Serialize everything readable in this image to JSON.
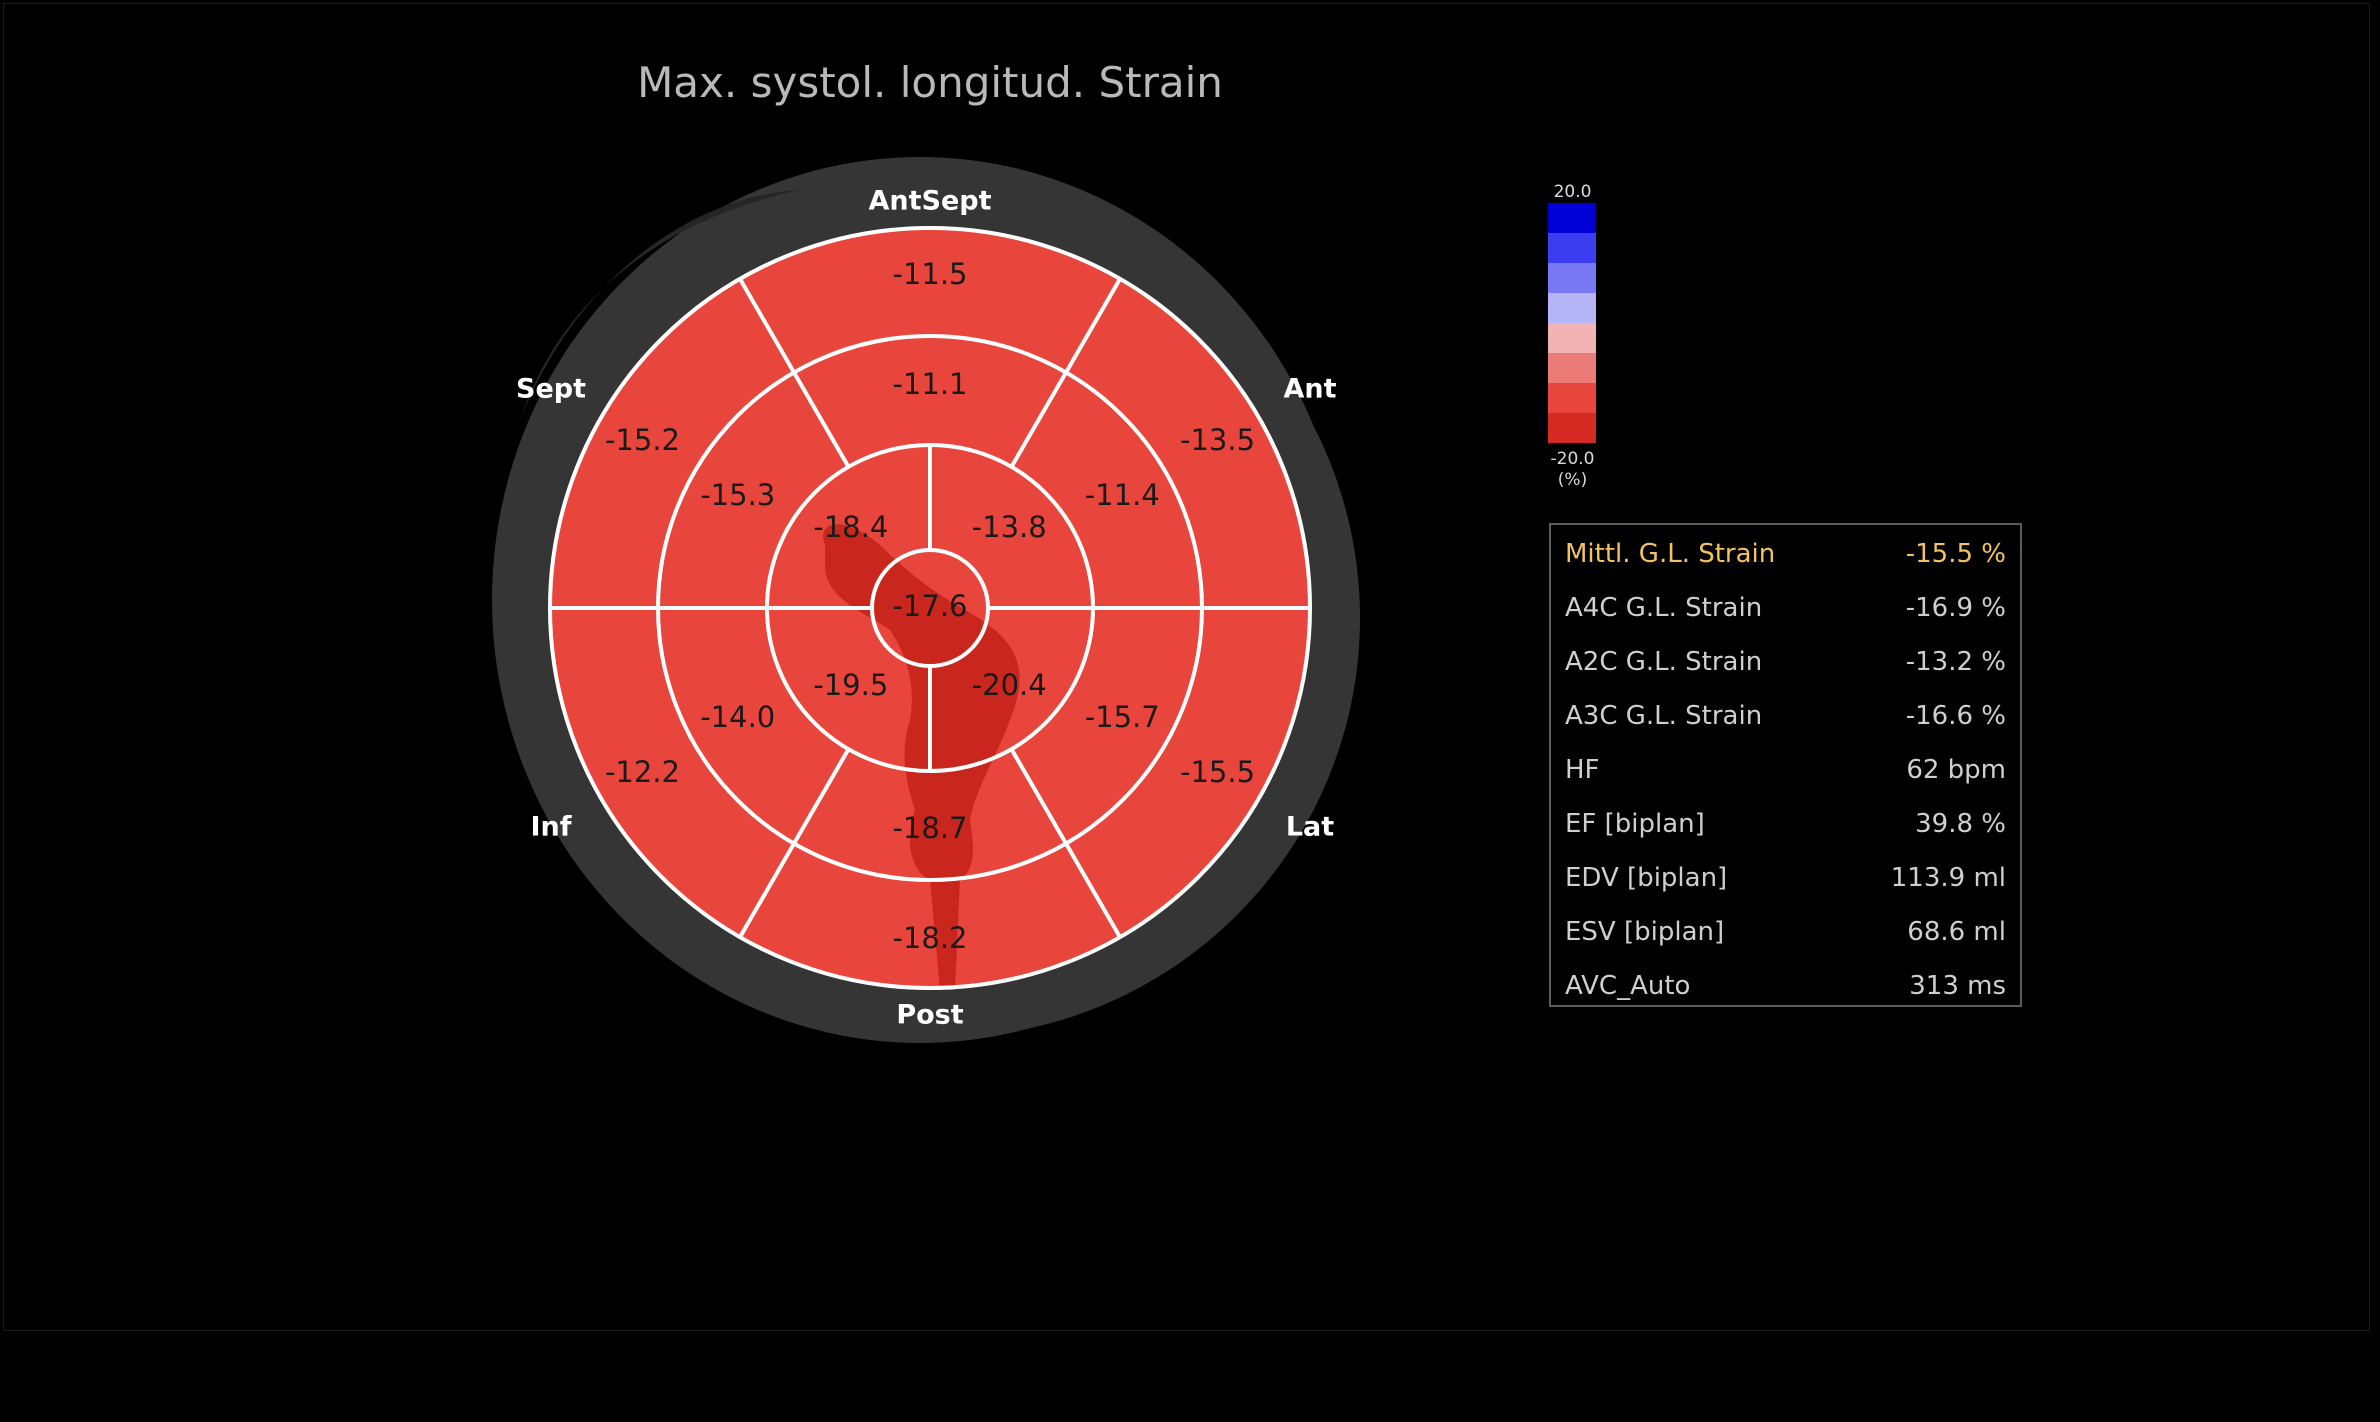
{
  "title": "Max. systol. longitud. Strain",
  "colorbar": {
    "max_label": "20.0",
    "min_label": "-20.0",
    "unit_label": "(%)",
    "colors": [
      "#0000d6",
      "#3c3cf0",
      "#7878f4",
      "#b4b4f6",
      "#f1b3b3",
      "#ec7a76",
      "#e8463c",
      "#d42a22"
    ]
  },
  "chart_data": {
    "type": "bullseye",
    "title": "Max. systol. longitud. Strain",
    "unit": "%",
    "value_range": [
      -20.0,
      20.0
    ],
    "wall_labels": [
      "AntSept",
      "Ant",
      "Lat",
      "Post",
      "Inf",
      "Sept"
    ],
    "segments": {
      "basal": [
        {
          "wall": "AntSept",
          "value": -11.5
        },
        {
          "wall": "Ant",
          "value": -13.5
        },
        {
          "wall": "Lat",
          "value": -15.5
        },
        {
          "wall": "Post",
          "value": -18.2
        },
        {
          "wall": "Inf",
          "value": -12.2
        },
        {
          "wall": "Sept",
          "value": -15.2
        }
      ],
      "mid": [
        {
          "wall": "AntSept",
          "value": -11.1
        },
        {
          "wall": "Ant",
          "value": -11.4
        },
        {
          "wall": "Lat",
          "value": -15.7
        },
        {
          "wall": "Post",
          "value": -18.7
        },
        {
          "wall": "Inf",
          "value": -14.0
        },
        {
          "wall": "Sept",
          "value": -15.3
        }
      ],
      "apical": [
        {
          "wall": "Ant",
          "value": -13.8
        },
        {
          "wall": "Lat",
          "value": -20.4
        },
        {
          "wall": "Inf",
          "value": -19.5
        },
        {
          "wall": "Sept",
          "value": -18.4
        }
      ],
      "apex": {
        "value": -17.6
      }
    },
    "segment_color": "#e8463c",
    "darker_region_color": "#c9271d"
  },
  "metrics": [
    {
      "label": "Mittl. G.L. Strain",
      "value": "-15.5 %",
      "highlight": true
    },
    {
      "label": "A4C G.L. Strain",
      "value": "-16.9 %"
    },
    {
      "label": "A2C G.L. Strain",
      "value": "-13.2 %"
    },
    {
      "label": "A3C G.L. Strain",
      "value": "-16.6 %"
    },
    {
      "label": "HF",
      "value": "62 bpm"
    },
    {
      "label": "EF [biplan]",
      "value": "39.8 %"
    },
    {
      "label": "EDV [biplan]",
      "value": "113.9 ml"
    },
    {
      "label": "ESV [biplan]",
      "value": "68.6 ml"
    },
    {
      "label": "AVC_Auto",
      "value": "313 ms"
    }
  ],
  "colors": {
    "background": "#000000",
    "ring": "#353535",
    "highlight": "#f3c35d",
    "text": "#cfcfcf"
  }
}
